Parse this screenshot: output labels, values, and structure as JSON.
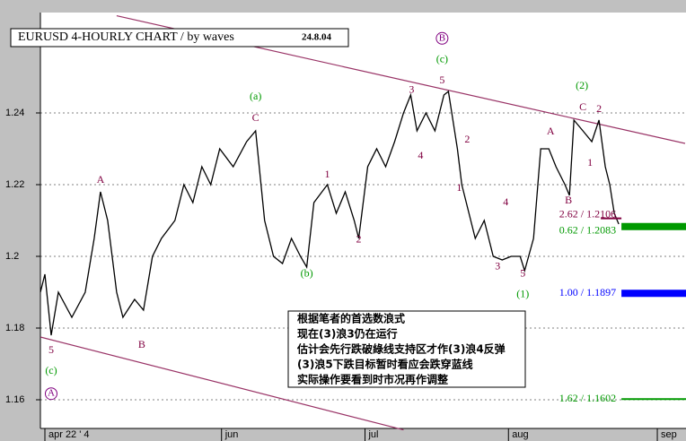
{
  "chart_data": {
    "type": "line",
    "title": "EURUSD 4-HOURLY CHART / by waves",
    "date": "24.8.04",
    "xlim": [
      0,
      144
    ],
    "ylim": [
      1.152,
      1.268
    ],
    "xticks": [
      {
        "value": 1,
        "label": "apr 22 ' 4"
      },
      {
        "value": 40.4,
        "label": "jun"
      },
      {
        "value": 72.4,
        "label": "jul"
      },
      {
        "value": 104.4,
        "label": "aug"
      },
      {
        "value": 137.6,
        "label": "sep"
      }
    ],
    "yticks": [
      1.16,
      1.18,
      1.2,
      1.22,
      1.24
    ],
    "grid": true,
    "series": [
      {
        "name": "EURUSD",
        "color": "#000000",
        "x": [
          0,
          1,
          2.4,
          4,
          7,
          10,
          12,
          13.4,
          15,
          17,
          18.4,
          21,
          23,
          25,
          27,
          30,
          32,
          34,
          36,
          38,
          40,
          43,
          46,
          48,
          50,
          52,
          54,
          56,
          58,
          59.4,
          61,
          64,
          66,
          68,
          70,
          71,
          73,
          75,
          77,
          79,
          81,
          82.6,
          84,
          86,
          88,
          90,
          91,
          92,
          93,
          94,
          95,
          97,
          99,
          101,
          103,
          105,
          107,
          108,
          110,
          111.6,
          113.4,
          115,
          117,
          118,
          119,
          121,
          123,
          124.6,
          126,
          127,
          128,
          129
        ],
        "values": [
          1.19,
          1.195,
          1.178,
          1.19,
          1.183,
          1.19,
          1.205,
          1.218,
          1.21,
          1.19,
          1.183,
          1.188,
          1.185,
          1.2,
          1.205,
          1.21,
          1.22,
          1.215,
          1.225,
          1.22,
          1.23,
          1.225,
          1.232,
          1.235,
          1.21,
          1.2,
          1.198,
          1.205,
          1.2,
          1.197,
          1.215,
          1.22,
          1.212,
          1.218,
          1.21,
          1.205,
          1.225,
          1.23,
          1.225,
          1.232,
          1.24,
          1.245,
          1.235,
          1.24,
          1.235,
          1.245,
          1.246,
          1.238,
          1.23,
          1.22,
          1.215,
          1.205,
          1.21,
          1.2,
          1.199,
          1.2,
          1.2,
          1.196,
          1.205,
          1.23,
          1.23,
          1.225,
          1.22,
          1.217,
          1.238,
          1.235,
          1.232,
          1.238,
          1.225,
          1.22,
          1.212,
          1.209
        ]
      }
    ],
    "trendlines": [
      {
        "color": "#993366",
        "x": [
          17,
          143.8
        ],
        "y": [
          1.2671,
          1.2315
        ]
      },
      {
        "color": "#993366",
        "x": [
          0,
          81
        ],
        "y": [
          1.1775,
          1.1516
        ]
      }
    ],
    "levels": [
      {
        "label": "2.62 / 1.2106",
        "value": 1.2106,
        "color": "#800040",
        "x0": 125
      },
      {
        "label": "0.62 / 1.2083",
        "value": 1.2083,
        "color": "#009900",
        "x0": 129.6
      },
      {
        "label": "1.00 / 1.1897",
        "value": 1.1897,
        "color": "#0000ff",
        "x0": 129.6
      },
      {
        "label": "1.62 / 1.1602",
        "value": 1.1602,
        "color": "#009900",
        "x0": 129.6
      }
    ],
    "annotations": [
      {
        "text": "5",
        "x": 2.4,
        "y": 1.1737,
        "color": "#800040"
      },
      {
        "text": "(c)",
        "x": 2.4,
        "y": 1.168,
        "color": "#009900"
      },
      {
        "text": "A",
        "x": 2.4,
        "y": 1.1617,
        "color": "#800080",
        "circled": true
      },
      {
        "text": "A",
        "x": 13.4,
        "y": 1.2212,
        "color": "#800040"
      },
      {
        "text": "B",
        "x": 22.6,
        "y": 1.1752,
        "color": "#800040"
      },
      {
        "text": "(a)",
        "x": 48,
        "y": 1.2445,
        "color": "#009900"
      },
      {
        "text": "C",
        "x": 48,
        "y": 1.2385,
        "color": "#800040"
      },
      {
        "text": "(b)",
        "x": 59.4,
        "y": 1.1951,
        "color": "#009900"
      },
      {
        "text": "1",
        "x": 64,
        "y": 1.2227,
        "color": "#800040"
      },
      {
        "text": "2",
        "x": 71,
        "y": 1.2046,
        "color": "#800040"
      },
      {
        "text": "3",
        "x": 82.8,
        "y": 1.2463,
        "color": "#800040"
      },
      {
        "text": "4",
        "x": 84.8,
        "y": 1.228,
        "color": "#800040"
      },
      {
        "text": "5",
        "x": 89.6,
        "y": 1.249,
        "color": "#800040"
      },
      {
        "text": "(c)",
        "x": 89.6,
        "y": 1.2548,
        "color": "#009900"
      },
      {
        "text": "B",
        "x": 89.6,
        "y": 1.2608,
        "color": "#800080",
        "circled": true
      },
      {
        "text": "2",
        "x": 95.2,
        "y": 1.2325,
        "color": "#800040"
      },
      {
        "text": "1",
        "x": 93.4,
        "y": 1.2189,
        "color": "#800040"
      },
      {
        "text": "4",
        "x": 103.8,
        "y": 1.2149,
        "color": "#800040"
      },
      {
        "text": "3",
        "x": 102,
        "y": 1.1971,
        "color": "#800040"
      },
      {
        "text": "5",
        "x": 107.6,
        "y": 1.1951,
        "color": "#800040"
      },
      {
        "text": "(1)",
        "x": 107.6,
        "y": 1.1893,
        "color": "#009900"
      },
      {
        "text": "A",
        "x": 113.8,
        "y": 1.2347,
        "color": "#800040"
      },
      {
        "text": "B",
        "x": 117.8,
        "y": 1.2154,
        "color": "#800040"
      },
      {
        "text": "1",
        "x": 122.6,
        "y": 1.2259,
        "color": "#800040"
      },
      {
        "text": "C",
        "x": 121,
        "y": 1.2415,
        "color": "#800040"
      },
      {
        "text": "2",
        "x": 124.6,
        "y": 1.241,
        "color": "#800040"
      },
      {
        "text": "(2)",
        "x": 120.8,
        "y": 1.2475,
        "color": "#009900"
      }
    ],
    "note": [
      "根据笔者的首选数浪式",
      "现在(3)浪3仍在运行",
      "估计会先行跌破綠线支持区才作(3)浪4反弹",
      "(3)浪5下跌目标暂时看应会跌穿蓝线",
      "实际操作要看到时市况再作调整"
    ]
  }
}
